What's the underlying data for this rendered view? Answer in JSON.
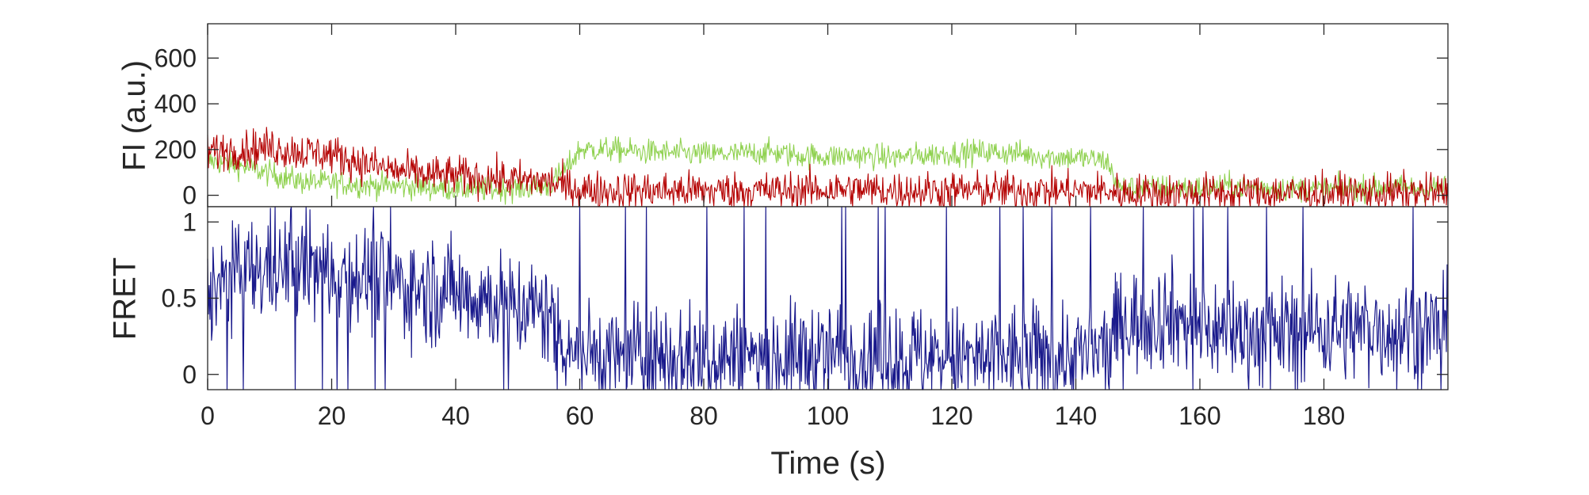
{
  "chart_data": [
    {
      "type": "line",
      "ylabel": "FI (a.u.)",
      "xlim": [
        0,
        200
      ],
      "ylim": [
        -50,
        750
      ],
      "yticks": [
        0,
        200,
        400,
        600
      ],
      "ytick_labels": [
        "0",
        "200",
        "400",
        "600"
      ],
      "grid": false,
      "series": [
        {
          "color": "#8fd14f",
          "x": [
            0,
            5,
            10,
            15,
            20,
            25,
            30,
            35,
            40,
            45,
            50,
            55,
            58,
            60,
            65,
            70,
            75,
            80,
            85,
            90,
            95,
            100,
            105,
            110,
            115,
            120,
            125,
            130,
            135,
            140,
            145,
            147,
            150,
            155,
            160,
            165,
            170,
            175,
            180,
            185,
            190,
            195,
            200
          ],
          "values": [
            150,
            130,
            95,
            60,
            55,
            45,
            40,
            35,
            30,
            25,
            30,
            40,
            120,
            200,
            200,
            190,
            185,
            180,
            180,
            190,
            175,
            170,
            175,
            165,
            175,
            185,
            190,
            185,
            170,
            165,
            150,
            30,
            30,
            35,
            30,
            40,
            35,
            30,
            25,
            30,
            35,
            30,
            30
          ]
        },
        {
          "color": "#b40000",
          "x": [
            0,
            5,
            10,
            15,
            20,
            25,
            30,
            35,
            40,
            45,
            50,
            55,
            58,
            60,
            65,
            70,
            75,
            80,
            85,
            90,
            95,
            100,
            105,
            110,
            115,
            120,
            125,
            130,
            135,
            140,
            145,
            147,
            150,
            155,
            160,
            165,
            170,
            175,
            180,
            185,
            190,
            195,
            200
          ],
          "values": [
            190,
            200,
            210,
            190,
            180,
            140,
            110,
            90,
            85,
            75,
            65,
            60,
            35,
            25,
            20,
            20,
            20,
            20,
            20,
            20,
            20,
            25,
            25,
            20,
            20,
            20,
            20,
            20,
            20,
            20,
            20,
            10,
            10,
            10,
            10,
            10,
            10,
            10,
            10,
            10,
            10,
            10,
            10
          ]
        }
      ]
    },
    {
      "type": "line",
      "xlabel": "Time (s)",
      "ylabel": "FRET",
      "xlim": [
        0,
        200
      ],
      "ylim": [
        -0.1,
        1.1
      ],
      "xticks": [
        0,
        20,
        40,
        60,
        80,
        100,
        120,
        140,
        160,
        180
      ],
      "xtick_labels": [
        "0",
        "20",
        "40",
        "60",
        "80",
        "100",
        "120",
        "140",
        "160",
        "180"
      ],
      "yticks": [
        0,
        0.5,
        1
      ],
      "ytick_labels": [
        "0",
        "0.5",
        "1"
      ],
      "grid": false,
      "series": [
        {
          "color": "#1a1a8c",
          "x": [
            0,
            5,
            10,
            15,
            20,
            25,
            30,
            35,
            40,
            45,
            50,
            55,
            58,
            60,
            65,
            70,
            75,
            80,
            85,
            90,
            95,
            100,
            105,
            110,
            115,
            120,
            125,
            130,
            135,
            140,
            145,
            147,
            150,
            155,
            160,
            165,
            170,
            175,
            180,
            185,
            190,
            195,
            200
          ],
          "values": [
            0.55,
            0.65,
            0.7,
            0.7,
            0.68,
            0.65,
            0.6,
            0.55,
            0.55,
            0.5,
            0.45,
            0.4,
            0.2,
            0.15,
            0.12,
            0.12,
            0.12,
            0.12,
            0.12,
            0.12,
            0.12,
            0.15,
            0.13,
            0.12,
            0.12,
            0.1,
            0.1,
            0.12,
            0.12,
            0.12,
            0.15,
            0.35,
            0.35,
            0.4,
            0.3,
            0.3,
            0.25,
            0.3,
            0.3,
            0.3,
            0.3,
            0.3,
            0.3
          ]
        }
      ]
    }
  ]
}
